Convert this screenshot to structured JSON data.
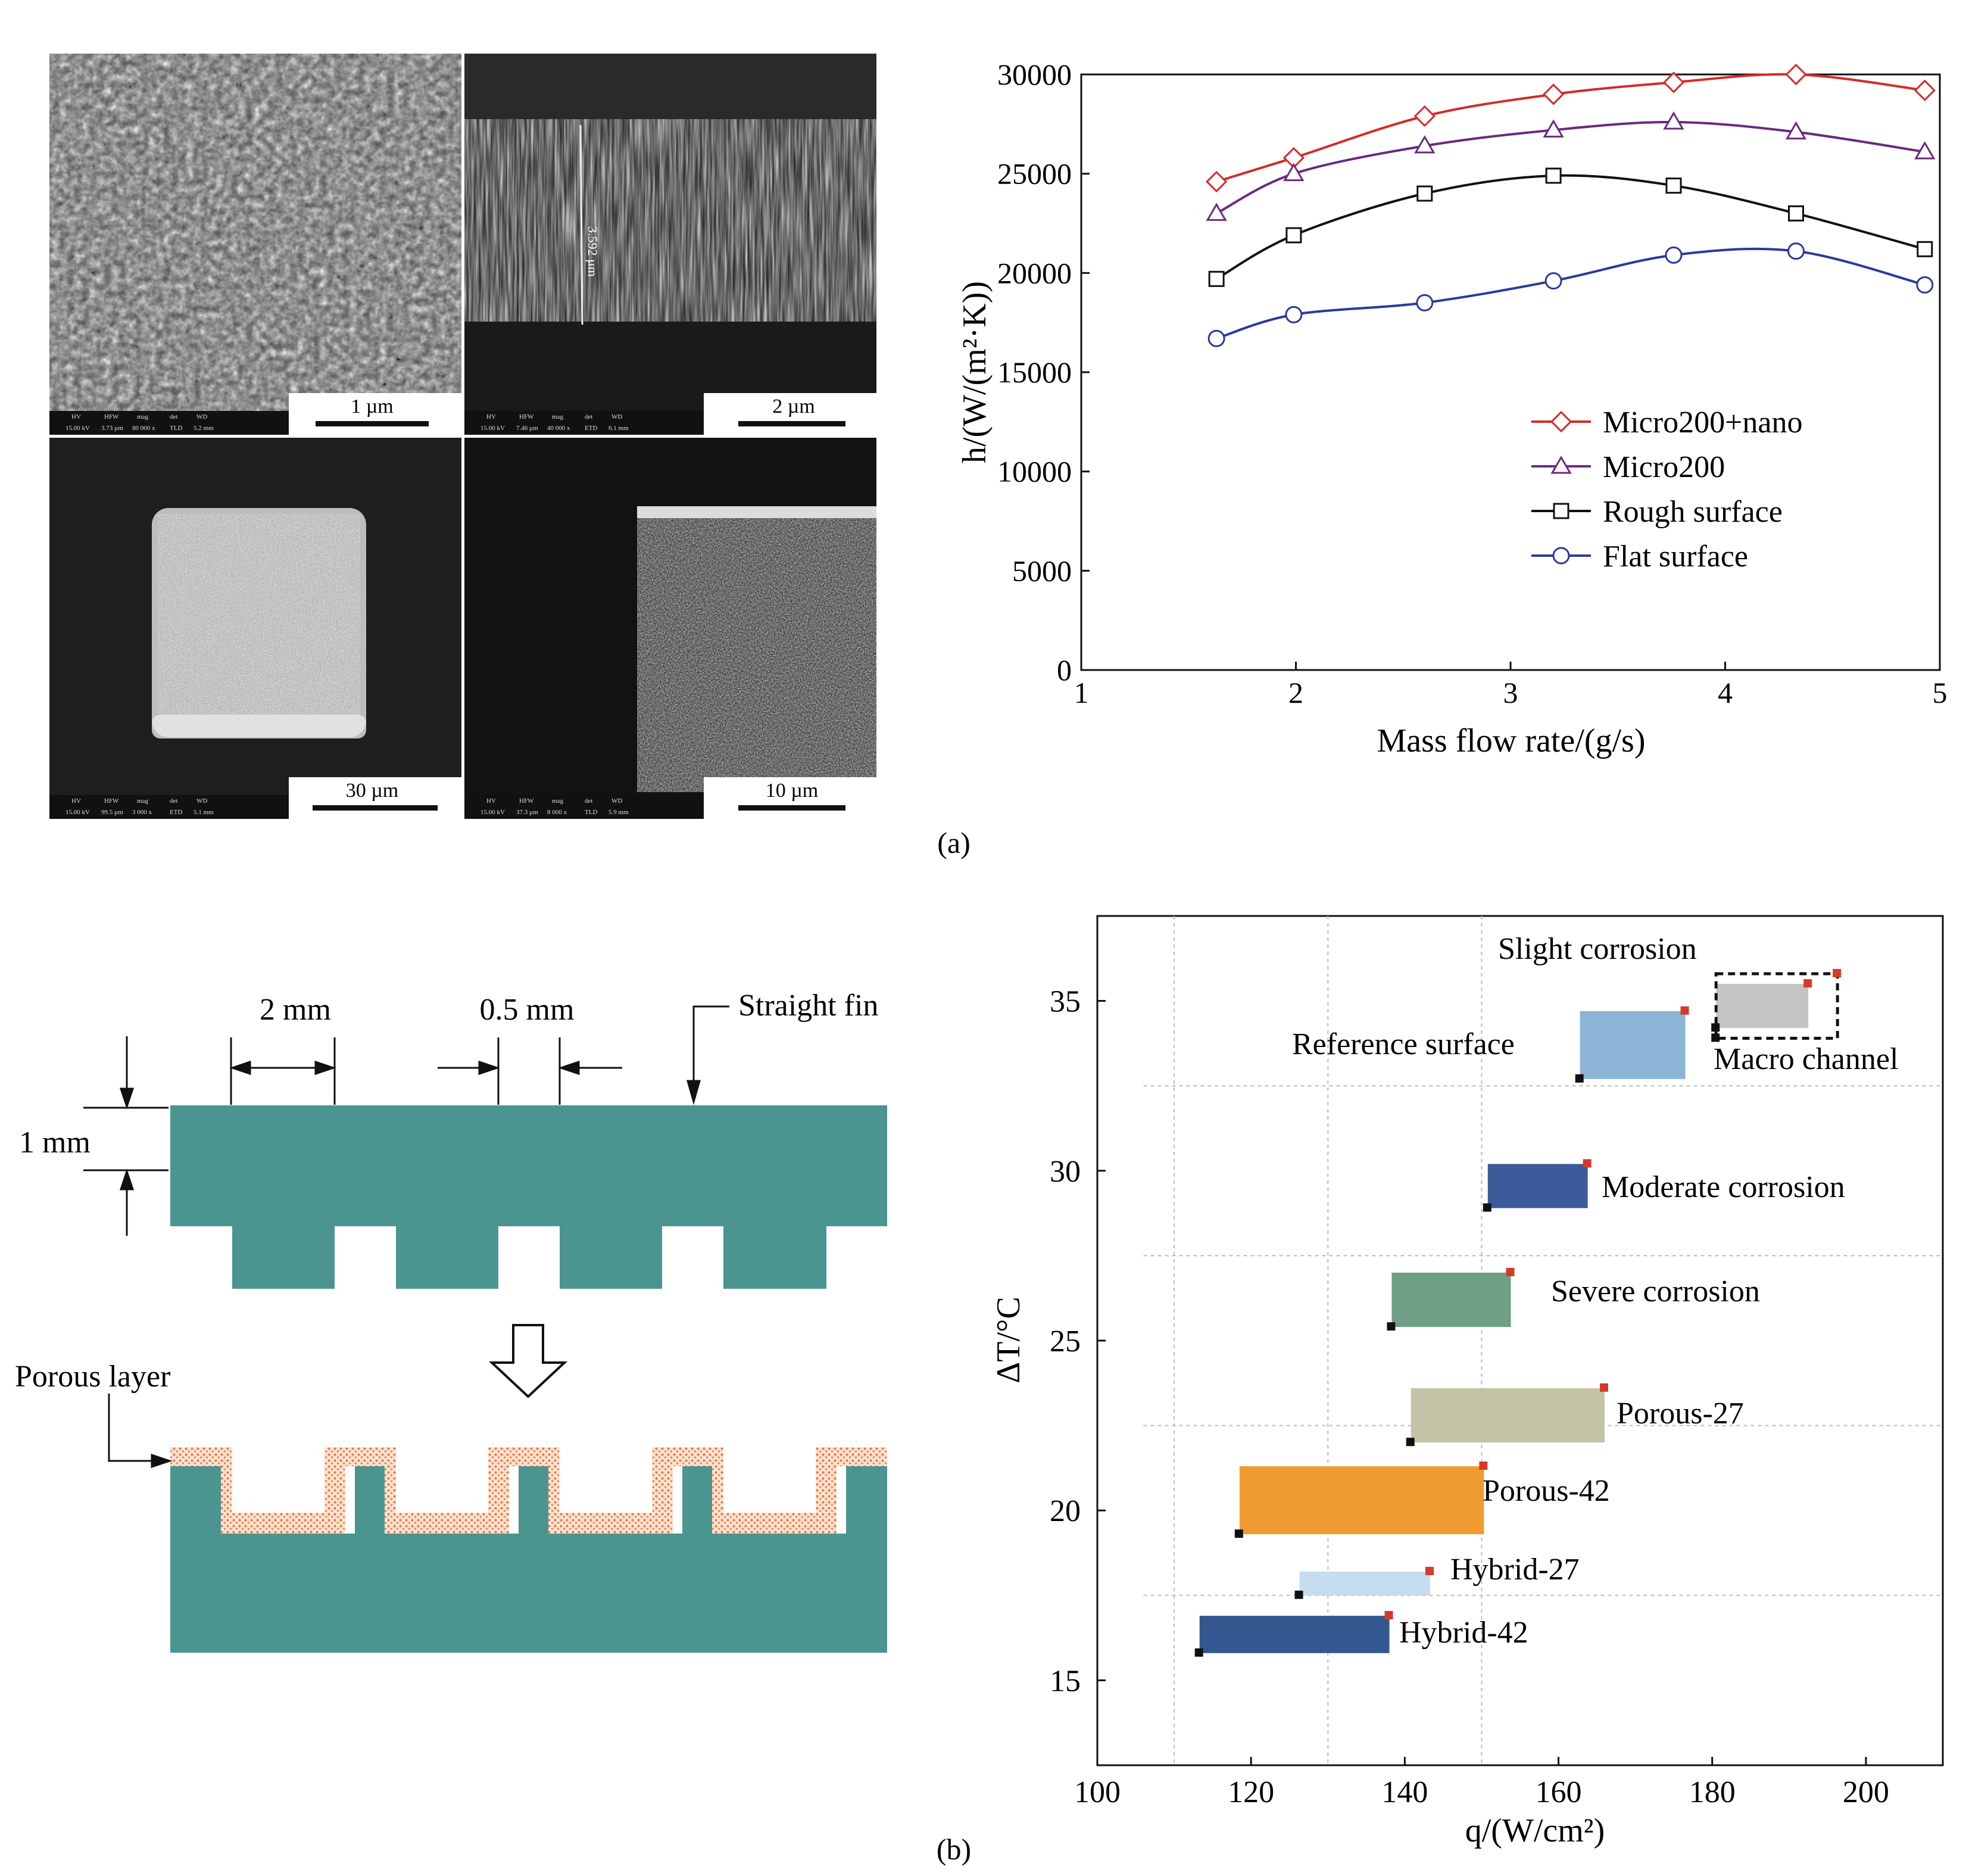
{
  "panel_labels": {
    "a": "(a)",
    "b": "(b)"
  },
  "sem": {
    "scalebars": [
      "1 µm",
      "2 µm",
      "30 µm",
      "10 µm"
    ],
    "measure": "3.592 µm",
    "info_headers": [
      "HV",
      "HFW",
      "mag",
      "det",
      "WD"
    ],
    "info_rows": [
      [
        "15.00 kV",
        "3.73 µm",
        "80 000 x",
        "TLD",
        "5.2 mm"
      ],
      [
        "15.00 kV",
        "7.46 µm",
        "40 000 x",
        "ETD",
        "6.1 mm"
      ],
      [
        "15.00 kV",
        "99.5 µm",
        "3 000 x",
        "ETD",
        "5.1 mm"
      ],
      [
        "15.00 kV",
        "37.3 µm",
        "8 000 x",
        "TLD",
        "5.9 mm"
      ]
    ]
  },
  "schematic": {
    "dim_2mm": "2 mm",
    "dim_05mm": "0.5 mm",
    "dim_1mm": "1 mm",
    "straight_fin": "Straight fin",
    "porous_layer": "Porous layer",
    "fill_color": "#4a9590",
    "porous_color": "#f29a6c"
  },
  "chart_data": [
    {
      "type": "line",
      "title": "",
      "xlabel": "Mass flow rate/(g/s)",
      "ylabel": "h/(W/(m²·K))",
      "xlim": [
        1,
        5
      ],
      "ylim": [
        0,
        30000
      ],
      "xticks": [
        1,
        2,
        3,
        4,
        5
      ],
      "yticks": [
        0,
        5000,
        10000,
        15000,
        20000,
        25000,
        30000
      ],
      "legend_position": "bottom-right",
      "series": [
        {
          "name": "Micro200+nano",
          "marker": "diamond",
          "color": "#d42a2a",
          "x": [
            1.63,
            1.99,
            2.6,
            3.2,
            3.76,
            4.33,
            4.93
          ],
          "y": [
            24600,
            25800,
            27900,
            29000,
            29600,
            30000,
            29200
          ]
        },
        {
          "name": "Micro200",
          "marker": "triangle",
          "color": "#6b2a7e",
          "x": [
            1.63,
            1.99,
            2.6,
            3.2,
            3.76,
            4.33,
            4.93
          ],
          "y": [
            23000,
            25000,
            26400,
            27200,
            27600,
            27100,
            26100
          ]
        },
        {
          "name": "Rough surface",
          "marker": "square",
          "color": "#111111",
          "x": [
            1.63,
            1.99,
            2.6,
            3.2,
            3.76,
            4.33,
            4.93
          ],
          "y": [
            19700,
            21900,
            24000,
            24900,
            24400,
            23000,
            21200
          ]
        },
        {
          "name": "Flat surface",
          "marker": "circle",
          "color": "#2a3a9e",
          "x": [
            1.63,
            1.99,
            2.6,
            3.2,
            3.76,
            4.33,
            4.93
          ],
          "y": [
            16700,
            17900,
            18500,
            19600,
            20900,
            21100,
            19400
          ]
        }
      ]
    },
    {
      "type": "range-boxes",
      "title": "",
      "xlabel": "q/(W/cm²)",
      "ylabel": "ΔT/°C",
      "xlim": [
        100,
        210
      ],
      "ylim": [
        12.5,
        37.5
      ],
      "xticks": [
        100,
        120,
        140,
        160,
        180,
        200
      ],
      "yticks": [
        15,
        20,
        25,
        30,
        35
      ],
      "grid_x": [
        110,
        130,
        150
      ],
      "grid_y": [
        17.5,
        22.5,
        27.5,
        32.5
      ],
      "boxes": [
        {
          "name": "Slight corrosion",
          "x": [
            180.5,
            192.5
          ],
          "y": [
            34.2,
            35.5
          ],
          "color": "#c2c5c3",
          "dashed": true
        },
        {
          "name": "Macro channel",
          "x": [
            180.5,
            196.3
          ],
          "y": [
            33.9,
            35.8
          ],
          "color": "none",
          "dashed": true
        },
        {
          "name": "Reference surface",
          "x": [
            162.8,
            176.5
          ],
          "y": [
            32.7,
            34.7
          ],
          "color": "#8bb4d7",
          "dashed": false
        },
        {
          "name": "Moderate corrosion",
          "x": [
            150.8,
            163.8
          ],
          "y": [
            28.9,
            30.2
          ],
          "color": "#3a5a9a",
          "dashed": false
        },
        {
          "name": "Severe corrosion",
          "x": [
            138.3,
            153.8
          ],
          "y": [
            25.4,
            27.0
          ],
          "color": "#6f9f86",
          "dashed": false
        },
        {
          "name": "Porous-27",
          "x": [
            140.8,
            166.0
          ],
          "y": [
            22.0,
            23.6
          ],
          "color": "#c4c3a6",
          "dashed": false
        },
        {
          "name": "Porous-42",
          "x": [
            118.5,
            150.3
          ],
          "y": [
            19.3,
            21.3
          ],
          "color": "#ef9b2f",
          "dashed": false
        },
        {
          "name": "Hybrid-27",
          "x": [
            126.3,
            143.3
          ],
          "y": [
            17.5,
            18.2
          ],
          "color": "#c6dcef",
          "dashed": false
        },
        {
          "name": "Hybrid-42",
          "x": [
            113.3,
            138.0
          ],
          "y": [
            15.8,
            16.9
          ],
          "color": "#35578f",
          "dashed": false
        }
      ]
    }
  ]
}
